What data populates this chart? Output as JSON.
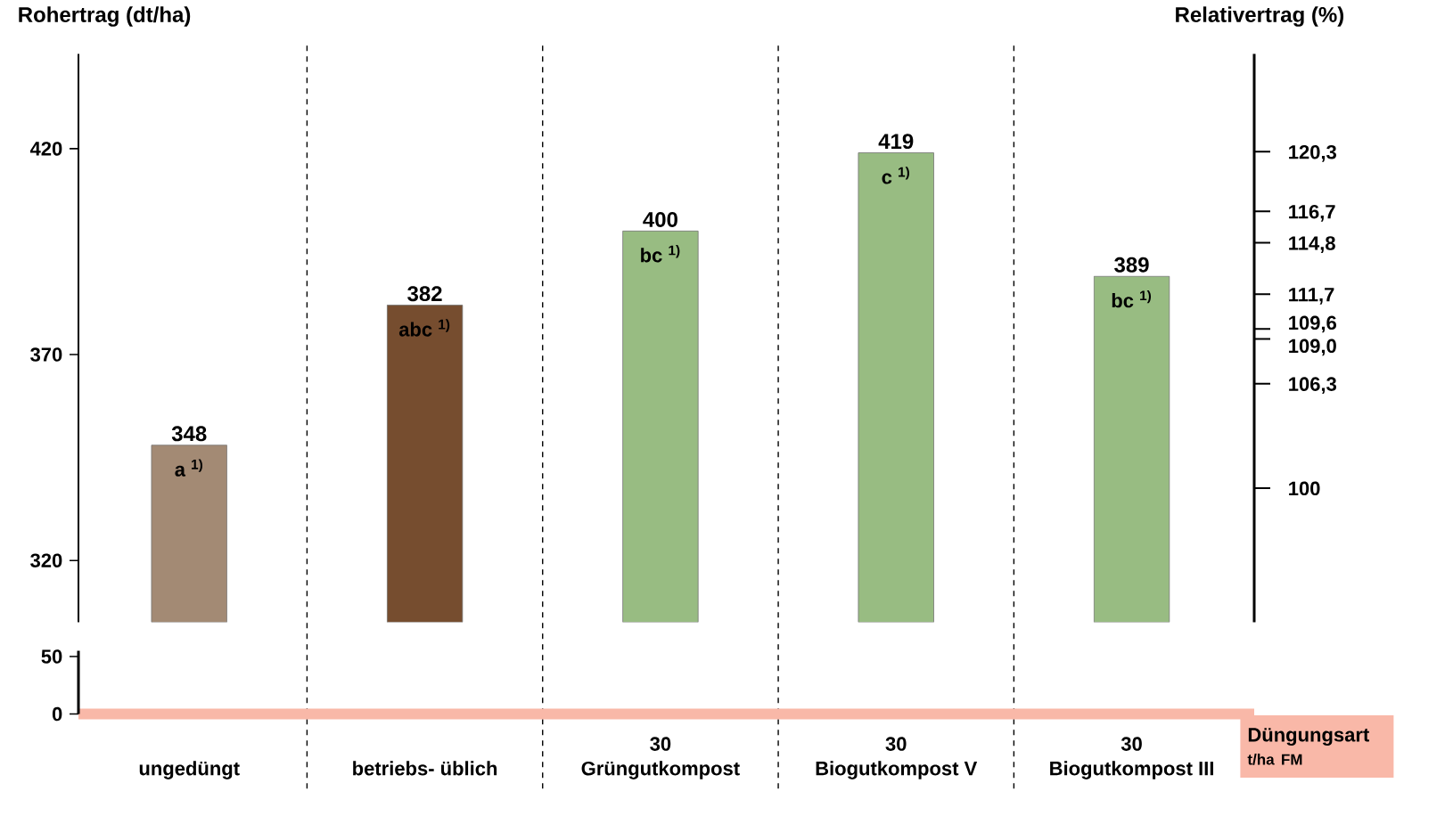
{
  "chart_data": [
    {
      "type": "bar",
      "ylabel": "Rohertrag (dt/ha)",
      "y2label": "Relativertrag (%)",
      "categories": [
        "ungedüngt",
        "betriebs- üblich",
        "Grüngutkompost",
        "Biogutkompost V",
        "Biogutkompost III"
      ],
      "values": [
        348,
        382,
        400,
        419,
        389
      ],
      "colors": [
        "#a38a74",
        "#764d2f",
        "#98bc82",
        "#98bc82",
        "#98bc82"
      ],
      "ylim": [
        305,
        443
      ],
      "yticks": [
        320,
        370,
        420
      ],
      "y2lim": [
        91.9,
        126.2
      ],
      "y2ticks": [
        100,
        {
          "value": 106.3,
          "label": "106,3"
        },
        {
          "value": 109.0,
          "label": "109,0"
        },
        {
          "value": 109.6,
          "label": "109,6"
        },
        {
          "value": 111.7,
          "label": "111,7"
        },
        {
          "value": 114.8,
          "label": "114,8"
        },
        {
          "value": 116.7,
          "label": "116,7"
        },
        {
          "value": 120.3,
          "label": "120,3"
        }
      ],
      "data_labels": true,
      "annotations": [
        {
          "text": "a $^{1)}$",
          "x": "ungedüngt",
          "y": 348
        },
        {
          "text": "abc $^{1)}$",
          "x": "betriebs- üblich",
          "y": 382
        },
        {
          "text": "bc $^{1)}$",
          "x": "Grüngutkompost",
          "y": 400
        },
        {
          "text": "c $^{1)}$",
          "x": "Biogutkompost V",
          "y": 419
        },
        {
          "text": "bc $^{1)}$",
          "x": "Biogutkompost III",
          "y": 389
        }
      ]
    },
    {
      "type": "bar",
      "xlabel": "Düngungsart",
      "categories": [
        null,
        null,
        "30",
        "30",
        "30"
      ],
      "values": [
        null,
        null,
        null,
        null,
        null
      ],
      "ylim": [
        0,
        55
      ],
      "yticks": [
        0,
        50
      ],
      "annotations": [
        "t/ha FM"
      ]
    }
  ]
}
